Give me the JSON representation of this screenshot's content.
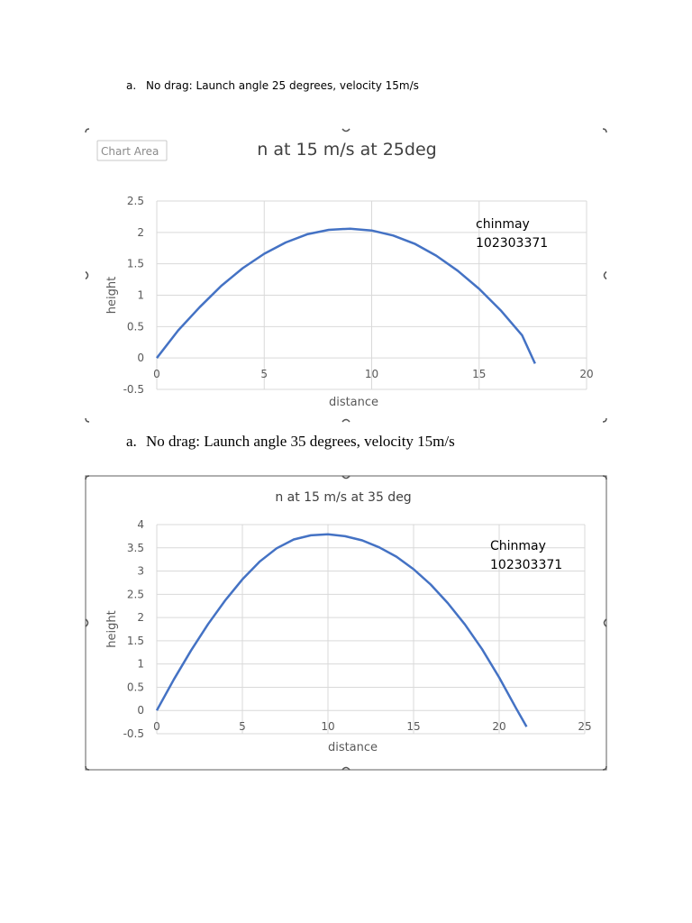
{
  "headings": [
    {
      "marker": "a.",
      "text": "No drag: Launch angle 25 degrees, velocity 15m/s"
    },
    {
      "marker": "a.",
      "text": "No drag: Launch angle 35 degrees, velocity 15m/s"
    }
  ],
  "tooltip": "Chart Area",
  "series_color": "#4472c4",
  "chart_data": [
    {
      "type": "line",
      "title": "n at 15 m/s at 25deg",
      "xlabel": "distance",
      "ylabel": "height",
      "xlim": [
        0,
        20
      ],
      "ylim": [
        -0.5,
        2.5
      ],
      "xticks": [
        "0",
        "5",
        "10",
        "15",
        "20"
      ],
      "yticks": [
        "-0.5",
        "0",
        "0.5",
        "1",
        "1.5",
        "2",
        "2.5"
      ],
      "grid": true,
      "annotation": [
        "chinmay",
        "102303371"
      ],
      "x": [
        0,
        1,
        2,
        3,
        4,
        5,
        6,
        7,
        8,
        9,
        10,
        11,
        12,
        13,
        14,
        15,
        16,
        17,
        17.6
      ],
      "y": [
        0,
        0.44,
        0.81,
        1.15,
        1.43,
        1.66,
        1.84,
        1.97,
        2.04,
        2.06,
        2.03,
        1.95,
        1.82,
        1.63,
        1.39,
        1.1,
        0.76,
        0.36,
        -0.09
      ]
    },
    {
      "type": "line",
      "title": "n at 15 m/s at 35 deg",
      "xlabel": "distance",
      "ylabel": "height",
      "xlim": [
        0,
        25
      ],
      "ylim": [
        -0.5,
        4
      ],
      "xticks": [
        "0",
        "5",
        "10",
        "15",
        "20",
        "25"
      ],
      "yticks": [
        "-0.5",
        "0",
        "0.5",
        "1",
        "1.5",
        "2",
        "2.5",
        "3",
        "3.5",
        "4"
      ],
      "grid": true,
      "annotation": [
        "Chinmay",
        "102303371"
      ],
      "x": [
        0,
        1,
        2,
        3,
        4,
        5,
        6,
        7,
        8,
        9,
        10,
        11,
        12,
        13,
        14,
        15,
        16,
        17,
        18,
        19,
        20,
        21,
        21.6
      ],
      "y": [
        0,
        0.67,
        1.29,
        1.86,
        2.37,
        2.82,
        3.2,
        3.49,
        3.68,
        3.77,
        3.79,
        3.75,
        3.66,
        3.51,
        3.31,
        3.04,
        2.71,
        2.31,
        1.85,
        1.32,
        0.71,
        0.04,
        -0.35
      ]
    }
  ]
}
